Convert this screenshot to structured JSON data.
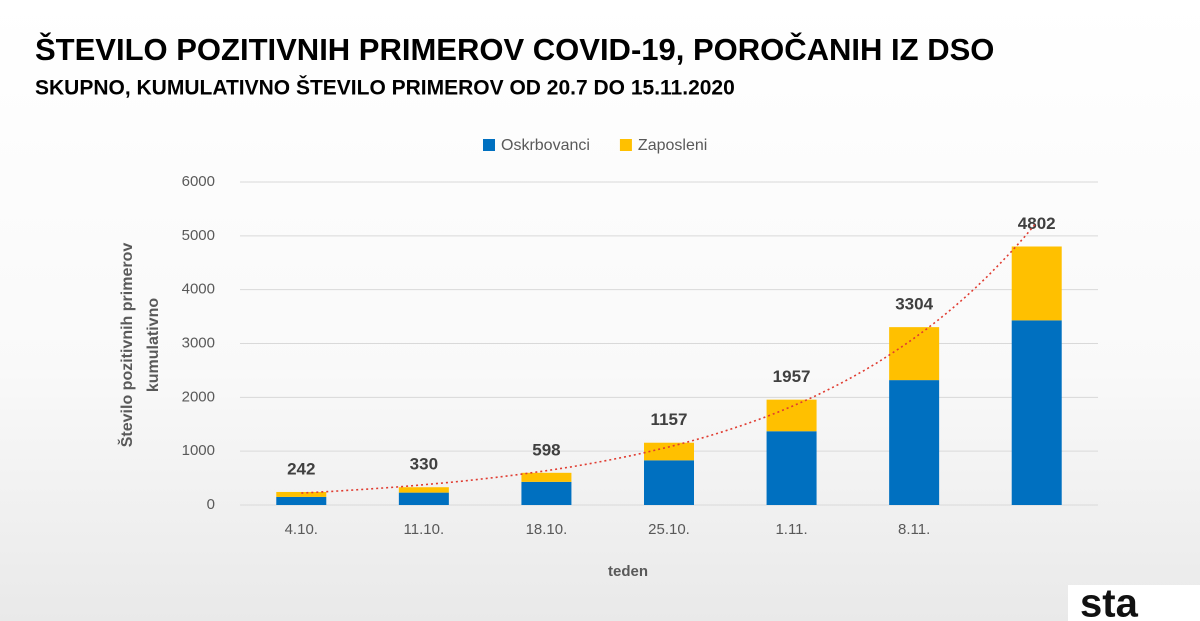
{
  "chart_data": {
    "type": "stacked_bar",
    "title": "ŠTEVILO POZITIVNIH PRIMEROV COVID-19, POROČANIH IZ DSO",
    "subtitle": "SKUPNO, KUMULATIVNO ŠTEVILO PRIMEROV OD 20.7 DO 15.11.2020",
    "ylabel": [
      "Število pozitivnih primerov",
      "kumulativno"
    ],
    "xlabel": "teden",
    "categories": [
      "4.10.",
      "11.10.",
      "18.10.",
      "25.10.",
      "1.11.",
      "8.11.",
      null
    ],
    "series": [
      {
        "name": "Oskrbovanci",
        "color": "#0070c0",
        "values": [
          150,
          230,
          430,
          830,
          1370,
          2320,
          3430
        ]
      },
      {
        "name": "Zaposleni",
        "color": "#ffc000",
        "values": [
          92,
          100,
          168,
          327,
          587,
          984,
          1372
        ]
      }
    ],
    "totals": [
      242,
      330,
      598,
      1157,
      1957,
      3304,
      4802
    ],
    "ylim": [
      0,
      6000
    ],
    "yticks": [
      0,
      1000,
      2000,
      3000,
      4000,
      5000,
      6000
    ],
    "grid": true,
    "trendline_color": "#e03c31",
    "logo": "sta"
  }
}
